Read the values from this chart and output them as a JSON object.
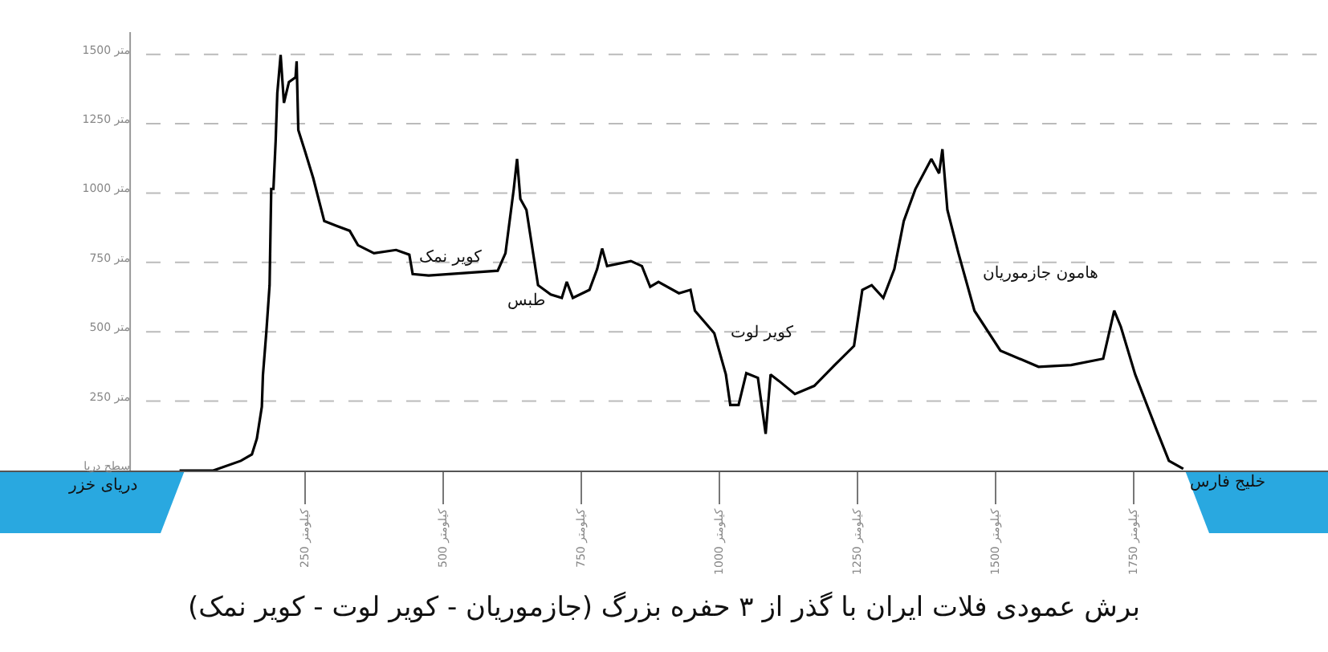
{
  "chart_data": {
    "type": "line",
    "title": "برش عمودی فلات ایران با گذر از ۳ حفره بزرگ (جازموریان - کویر لوت - کویر نمک)",
    "x": [
      23,
      84,
      134,
      154,
      163,
      172,
      174,
      180,
      186,
      189,
      193,
      197,
      200,
      206,
      212,
      221,
      233,
      235,
      238,
      250,
      265,
      285,
      308,
      331,
      346,
      375,
      415,
      439,
      445,
      474,
      599,
      613,
      628,
      634,
      640,
      651,
      672,
      695,
      715,
      724,
      735,
      765,
      779,
      788,
      797,
      840,
      860,
      875,
      890,
      927,
      948,
      956,
      991,
      1012,
      1020,
      1035,
      1049,
      1070,
      1084,
      1093,
      1108,
      1137,
      1172,
      1209,
      1244,
      1259,
      1276,
      1297,
      1317,
      1334,
      1355,
      1384,
      1398,
      1404,
      1413,
      1433,
      1462,
      1509,
      1578,
      1637,
      1695,
      1715,
      1727,
      1753,
      1791,
      1814,
      1840
    ],
    "series": [
      {
        "color": "#000000",
        "values": [
          0,
          0,
          35,
          58,
          115,
          230,
          345,
          495,
          668,
          1015,
          1015,
          1187,
          1360,
          1498,
          1325,
          1400,
          1417,
          1475,
          1227,
          1152,
          1054,
          899,
          881,
          864,
          812,
          783,
          795,
          778,
          708,
          703,
          720,
          783,
          1014,
          1123,
          979,
          939,
          668,
          634,
          622,
          680,
          622,
          651,
          726,
          800,
          737,
          755,
          737,
          662,
          680,
          639,
          651,
          576,
          495,
          346,
          236,
          236,
          351,
          334,
          132,
          346,
          323,
          276,
          305,
          380,
          449,
          651,
          668,
          622,
          726,
          899,
          1014,
          1123,
          1071,
          1158,
          939,
          783,
          576,
          432,
          374,
          380,
          403,
          576,
          518,
          346,
          150,
          35,
          6
        ]
      }
    ],
    "xlim": [
      -302,
      2102
    ],
    "xticks": [
      {
        "value": 250,
        "label": "250 کیلومتر"
      },
      {
        "value": 500,
        "label": "500 کیلومتر"
      },
      {
        "value": 750,
        "label": "750 کیلومتر"
      },
      {
        "value": 1000,
        "label": "1000 کیلومتر"
      },
      {
        "value": 1250,
        "label": "1250 کیلومتر"
      },
      {
        "value": 1500,
        "label": "1500 کیلومتر"
      },
      {
        "value": 1750,
        "label": "1750 کیلومتر"
      }
    ],
    "ylim": [
      0,
      1580
    ],
    "yticks": [
      {
        "value": 0,
        "label": "سطح دریا"
      },
      {
        "value": 250,
        "label": "250 متر"
      },
      {
        "value": 500,
        "label": "500 متر"
      },
      {
        "value": 750,
        "label": "750 متر"
      },
      {
        "value": 1000,
        "label": "1000 متر"
      },
      {
        "value": 1250,
        "label": "1250 متر"
      },
      {
        "value": 1500,
        "label": "1500 متر"
      }
    ],
    "grid": "y",
    "marker": "none",
    "line_style": "solid",
    "annotations": [
      "دریای خزر",
      "خلیج فارس",
      "کویر نمک",
      "طبس",
      "کویر لوت",
      "هامون جازموریان"
    ]
  }
}
